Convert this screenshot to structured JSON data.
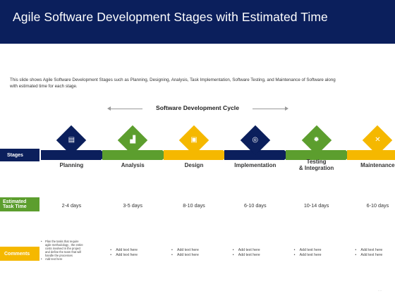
{
  "slide": {
    "title": "Agile Software Development Stages with Estimated Time",
    "description": "This slide shows Agile Software Development Stages such as Planning,  Designing,  Analysis, Task Implementation,  Software Testing, and Maintenance of Software along with estimated time  for each stage.",
    "cycle_title": "Software Development Cycle",
    "pager": "◦  ◦"
  },
  "row_labels": {
    "stages": "Stages",
    "estimated_line1": "Estimated",
    "estimated_line2": "Task Time",
    "comments": "Comments"
  },
  "colors": {
    "navy": "#0b1f5c",
    "green": "#5c9e2e",
    "yellow": "#f5b800"
  },
  "stages": [
    {
      "name_line1": "Planning",
      "name_line2": "",
      "time": "2-4 days",
      "color": "#0b1f5c",
      "icon": "document-icon",
      "glyph": "▤"
    },
    {
      "name_line1": "Analysis",
      "name_line2": "",
      "time": "3-5 days",
      "color": "#5c9e2e",
      "icon": "chart-icon",
      "glyph": "▟"
    },
    {
      "name_line1": "Design",
      "name_line2": "",
      "time": "8-10 days",
      "color": "#f5b800",
      "icon": "layout-icon",
      "glyph": "▣"
    },
    {
      "name_line1": "Implementation",
      "name_line2": "",
      "time": "6-10 days",
      "color": "#0b1f5c",
      "icon": "target-icon",
      "glyph": "◎"
    },
    {
      "name_line1": "Testing",
      "name_line2": "& Integration",
      "time": "10-14 days",
      "color": "#5c9e2e",
      "icon": "gear-icon",
      "glyph": "✹"
    },
    {
      "name_line1": "Maintenance",
      "name_line2": "",
      "time": "6-10 days",
      "color": "#f5b800",
      "icon": "tools-icon",
      "glyph": "✕"
    }
  ],
  "first_comment": [
    "Plan the tasks that require agile methodology , the entire costs involved in the project and define the team that will handle the processes",
    "Add text here"
  ],
  "comments": [
    [
      "Add text here",
      "Add text here"
    ],
    [
      "Add text here",
      "Add text here"
    ],
    [
      "Add text here",
      "Add text here"
    ],
    [
      "Add text here",
      "Add text here"
    ],
    [
      "Add text here",
      "Add text here"
    ]
  ]
}
